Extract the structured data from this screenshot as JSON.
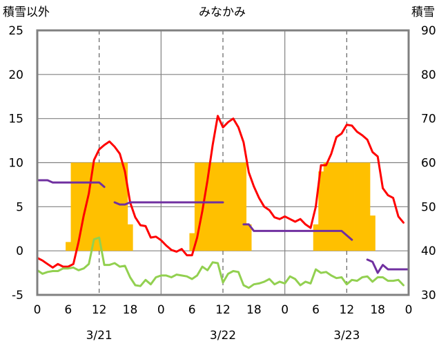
{
  "chart_data": {
    "type": "line",
    "title": "みなかみ",
    "left_axis_label": "積雪以外",
    "right_axis_label": "積雪",
    "left_ylim": [
      -5,
      25
    ],
    "left_yticks": [
      -5,
      0,
      5,
      10,
      15,
      20,
      25
    ],
    "right_ylim": [
      30,
      90
    ],
    "right_yticks": [
      30,
      40,
      50,
      60,
      70,
      80,
      90
    ],
    "xlim_hours": [
      0,
      72
    ],
    "x_tick_labels": [
      "0",
      "6",
      "12",
      "18",
      "0",
      "6",
      "12",
      "18",
      "0",
      "6",
      "12",
      "18",
      "0"
    ],
    "dates": [
      "3/21",
      "3/22",
      "3/23"
    ],
    "colors": {
      "precip_bar": "#FFC000",
      "temperature": "#FF0000",
      "snow_depth": "#7030A0",
      "humidity_green": "#92D050",
      "grid": "#808080",
      "frame": "#808080"
    },
    "series": [
      {
        "axis": "left",
        "style": "bar",
        "color": "#FFC000",
        "x": [
          6,
          7,
          8,
          9,
          10,
          11,
          12,
          13,
          14,
          15,
          16,
          17,
          18,
          30,
          31,
          32,
          33,
          34,
          35,
          36,
          37,
          38,
          39,
          40,
          41,
          42,
          54,
          55,
          56,
          57,
          58,
          59,
          60,
          61,
          62,
          63,
          64,
          65,
          66
        ],
        "values": [
          1,
          10,
          10,
          10,
          10,
          10,
          10,
          10,
          10,
          10,
          10,
          10,
          3,
          2,
          10,
          10,
          10,
          10,
          10,
          10,
          10,
          10,
          10,
          10,
          3,
          0,
          3,
          9,
          10,
          10,
          10,
          10,
          10,
          10,
          10,
          10,
          10,
          4,
          0
        ]
      },
      {
        "axis": "left",
        "style": "line",
        "color": "#FF0000",
        "x": [
          0,
          1,
          2,
          3,
          4,
          5,
          6,
          7,
          8,
          9,
          10,
          11,
          12,
          13,
          14,
          15,
          16,
          17,
          18,
          19,
          20,
          21,
          22,
          23,
          24,
          25,
          26,
          27,
          28,
          29,
          30,
          31,
          32,
          33,
          34,
          35,
          36,
          37,
          38,
          39,
          40,
          41,
          42,
          43,
          44,
          45,
          46,
          47,
          48,
          49,
          50,
          51,
          52,
          53,
          54,
          55,
          56,
          57,
          58,
          59,
          60,
          61,
          62,
          63,
          64,
          65,
          66,
          67,
          68,
          69,
          70,
          71
        ],
        "values": [
          -0.8,
          -1.1,
          -1.5,
          -1.9,
          -1.5,
          -1.8,
          -1.8,
          -1.5,
          1.0,
          4.0,
          6.5,
          10.3,
          11.5,
          12.0,
          12.4,
          11.8,
          11.0,
          9.0,
          5.5,
          3.8,
          2.9,
          2.8,
          1.5,
          1.6,
          1.2,
          0.6,
          0.1,
          -0.1,
          0.2,
          -0.5,
          -0.5,
          1.5,
          4.5,
          8.0,
          12.0,
          15.3,
          14.0,
          14.6,
          15.0,
          14.0,
          12.3,
          8.9,
          7.3,
          6.0,
          5.0,
          4.6,
          3.8,
          3.6,
          3.9,
          3.6,
          3.3,
          3.6,
          3.0,
          2.6,
          5.0,
          9.7,
          9.7,
          11.0,
          12.9,
          13.3,
          14.3,
          14.2,
          13.5,
          13.1,
          12.6,
          11.2,
          10.7,
          7.1,
          6.3,
          6.0,
          3.9,
          3.2
        ]
      },
      {
        "axis": "right",
        "style": "line",
        "color": "#7030A0",
        "x": [
          0,
          1,
          2,
          3,
          4,
          5,
          6,
          7,
          8,
          9,
          10,
          11,
          12,
          13,
          14,
          15,
          16,
          17,
          18,
          19,
          20,
          21,
          22,
          23,
          24,
          25,
          26,
          27,
          28,
          29,
          30,
          31,
          32,
          33,
          34,
          35,
          36,
          37,
          38,
          39,
          40,
          41,
          42,
          43,
          44,
          45,
          46,
          47,
          48,
          49,
          50,
          51,
          52,
          53,
          54,
          55,
          56,
          57,
          58,
          59,
          60,
          61,
          62,
          63,
          64,
          65,
          66,
          67,
          68,
          69,
          70,
          71
        ],
        "values": [
          56,
          56,
          56,
          55.5,
          55.5,
          55.5,
          55.5,
          55.5,
          55.5,
          55.5,
          55.5,
          55.5,
          55.5,
          54.5,
          null,
          51,
          50.5,
          50.5,
          51,
          51,
          51,
          51,
          51,
          51,
          51,
          51,
          51,
          51,
          51,
          51,
          51,
          51,
          51,
          51,
          51,
          51,
          51,
          null,
          null,
          null,
          46,
          46,
          44.5,
          44.5,
          44.5,
          44.5,
          44.5,
          44.5,
          44.5,
          44.5,
          44.5,
          44.5,
          44.5,
          44.5,
          44.5,
          44.5,
          44.5,
          44.5,
          44.5,
          44.5,
          43.5,
          42.5,
          null,
          null,
          null,
          null,
          null,
          null,
          null,
          null,
          null,
          null
        ]
      },
      {
        "axis": "right",
        "style": "line",
        "color": "#7030A0",
        "x": [
          64,
          65,
          66,
          67,
          68,
          69,
          70,
          71,
          72
        ],
        "values": [
          38,
          37.5,
          35,
          36.8,
          35.8,
          35.8,
          35.8,
          35.8,
          35.8
        ]
      },
      {
        "axis": "left",
        "style": "line",
        "color": "#92D050",
        "x": [
          0,
          1,
          2,
          3,
          4,
          5,
          6,
          7,
          8,
          9,
          10,
          11,
          12,
          13,
          14,
          15,
          16,
          17,
          18,
          19,
          20,
          21,
          22,
          23,
          24,
          25,
          26,
          27,
          28,
          29,
          30,
          31,
          32,
          33,
          34,
          35,
          36,
          37,
          38,
          39,
          40,
          41,
          42,
          43,
          44,
          45,
          46,
          47,
          48,
          49,
          50,
          51,
          52,
          53,
          54,
          55,
          56,
          57,
          58,
          59,
          60,
          61,
          62,
          63,
          64,
          65,
          66,
          67,
          68,
          69,
          70,
          71
        ],
        "values": [
          -2.2,
          -2.6,
          -2.4,
          -2.3,
          -2.3,
          -2.0,
          -2.0,
          -1.9,
          -2.2,
          -2.0,
          -1.5,
          1.3,
          1.5,
          -1.6,
          -1.6,
          -1.4,
          -1.8,
          -1.7,
          -3.0,
          -3.9,
          -4.0,
          -3.3,
          -3.8,
          -3.0,
          -2.8,
          -2.8,
          -3.0,
          -2.7,
          -2.8,
          -2.9,
          -3.2,
          -2.8,
          -1.8,
          -2.2,
          -1.3,
          -1.4,
          -3.6,
          -2.6,
          -2.3,
          -2.4,
          -3.9,
          -4.2,
          -3.8,
          -3.7,
          -3.5,
          -3.2,
          -3.8,
          -3.5,
          -3.7,
          -2.9,
          -3.2,
          -3.9,
          -3.5,
          -3.7,
          -2.1,
          -2.5,
          -2.4,
          -2.8,
          -3.1,
          -3.0,
          -3.8,
          -3.3,
          -3.4,
          -3.0,
          -2.9,
          -3.5,
          -3.0,
          -3.0,
          -3.4,
          -3.4,
          -3.3,
          -3.9
        ]
      }
    ]
  }
}
